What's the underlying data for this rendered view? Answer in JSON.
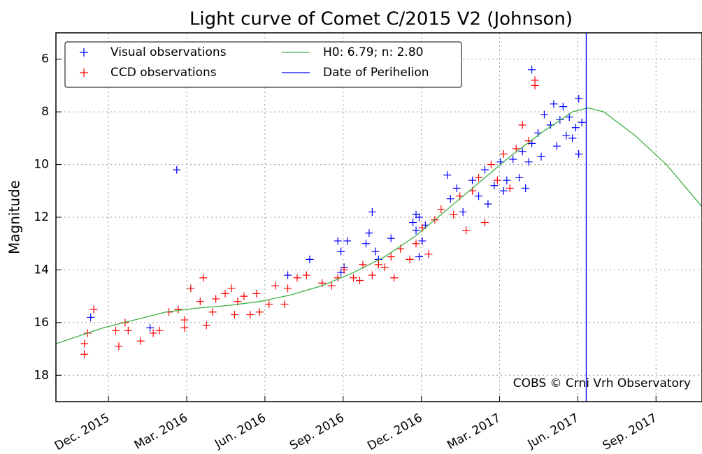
{
  "chart_data": {
    "type": "scatter",
    "title": "Light curve of Comet C/2015 V2 (Johnson)",
    "ylabel": "Magnitude",
    "annotation": "COBS © Crni Vrh Observatory",
    "xlim": [
      2015.749,
      2017.814
    ],
    "ylim": [
      5,
      19
    ],
    "invert_y": true,
    "xticks": [
      {
        "value": 2015.917,
        "label": "Dec. 2015"
      },
      {
        "value": 2016.167,
        "label": "Mar. 2016"
      },
      {
        "value": 2016.417,
        "label": "Jun. 2016"
      },
      {
        "value": 2016.667,
        "label": "Sep. 2016"
      },
      {
        "value": 2016.917,
        "label": "Dec. 2016"
      },
      {
        "value": 2017.167,
        "label": "Mar. 2017"
      },
      {
        "value": 2017.417,
        "label": "Jun. 2017"
      },
      {
        "value": 2017.667,
        "label": "Sep. 2017"
      }
    ],
    "yticks": [
      6,
      8,
      10,
      12,
      14,
      16,
      18
    ],
    "grid": true,
    "legend": "upper left",
    "series": [
      {
        "name": "Visual observations",
        "kind": "scatter",
        "color": "#0000ff",
        "x": [
          2015.86,
          2016.05,
          2016.135,
          2016.49,
          2016.56,
          2016.65,
          2016.66,
          2016.67,
          2016.68,
          2016.66,
          2016.74,
          2016.75,
          2016.76,
          2016.77,
          2016.78,
          2016.82,
          2016.89,
          2016.9,
          2016.91,
          2016.92,
          2016.91,
          2016.93,
          2016.9,
          2017.0,
          2017.01,
          2017.03,
          2017.05,
          2017.08,
          2017.1,
          2017.12,
          2017.13,
          2017.15,
          2017.17,
          2017.18,
          2017.19,
          2017.21,
          2017.23,
          2017.24,
          2017.25,
          2017.26,
          2017.27,
          2017.29,
          2017.3,
          2017.31,
          2017.27,
          2017.33,
          2017.34,
          2017.35,
          2017.36,
          2017.37,
          2017.38,
          2017.39,
          2017.4,
          2017.41,
          2017.42,
          2017.42,
          2017.43
        ],
        "values": [
          15.8,
          16.2,
          10.2,
          14.2,
          13.6,
          12.9,
          13.3,
          13.9,
          12.9,
          14.1,
          13.0,
          12.6,
          11.8,
          13.3,
          13.6,
          12.8,
          12.2,
          12.5,
          12.0,
          12.9,
          13.5,
          12.3,
          11.9,
          10.4,
          11.3,
          10.9,
          11.8,
          10.6,
          11.2,
          10.2,
          11.5,
          10.8,
          9.9,
          11.0,
          10.6,
          9.8,
          10.5,
          9.5,
          10.9,
          9.9,
          9.2,
          8.8,
          9.7,
          8.1,
          6.4,
          8.5,
          7.7,
          9.3,
          8.3,
          7.8,
          8.9,
          8.2,
          9.0,
          8.6,
          7.5,
          9.6,
          8.4
        ]
      },
      {
        "name": "CCD observations",
        "kind": "scatter",
        "color": "#ff0000",
        "x": [
          2015.84,
          2015.84,
          2015.85,
          2015.87,
          2015.94,
          2015.95,
          2015.97,
          2015.98,
          2016.02,
          2016.06,
          2016.08,
          2016.11,
          2016.14,
          2016.16,
          2016.16,
          2016.18,
          2016.21,
          2016.22,
          2016.23,
          2016.25,
          2016.26,
          2016.29,
          2016.31,
          2016.32,
          2016.33,
          2016.35,
          2016.37,
          2016.39,
          2016.4,
          2016.43,
          2016.45,
          2016.48,
          2016.49,
          2016.52,
          2016.55,
          2016.6,
          2016.63,
          2016.65,
          2016.67,
          2016.7,
          2016.72,
          2016.73,
          2016.76,
          2016.78,
          2016.8,
          2016.82,
          2016.83,
          2016.85,
          2016.88,
          2016.9,
          2016.92,
          2016.94,
          2016.96,
          2016.98,
          2017.02,
          2017.04,
          2017.06,
          2017.08,
          2017.1,
          2017.12,
          2017.14,
          2017.16,
          2017.18,
          2017.2,
          2017.22,
          2017.24,
          2017.26,
          2017.28,
          2017.28
        ],
        "values": [
          16.8,
          17.2,
          16.4,
          15.5,
          16.3,
          16.9,
          16.0,
          16.3,
          16.7,
          16.4,
          16.3,
          15.6,
          15.5,
          16.2,
          15.9,
          14.7,
          15.2,
          14.3,
          16.1,
          15.6,
          15.1,
          14.9,
          14.7,
          15.7,
          15.2,
          15.0,
          15.7,
          14.9,
          15.6,
          15.3,
          14.6,
          15.3,
          14.7,
          14.3,
          14.2,
          14.5,
          14.6,
          14.3,
          14.0,
          14.3,
          14.4,
          13.8,
          14.2,
          13.8,
          13.9,
          13.5,
          14.3,
          13.2,
          13.6,
          13.0,
          12.4,
          13.4,
          12.1,
          11.7,
          11.9,
          11.2,
          12.5,
          11.0,
          10.5,
          12.2,
          10.0,
          10.6,
          9.6,
          10.9,
          9.4,
          8.5,
          9.1,
          6.8,
          7.0
        ]
      },
      {
        "name": "H0: 6.79; n: 2.80",
        "kind": "line",
        "color": "#3cb043",
        "x": [
          2015.749,
          2015.9,
          2016.0,
          2016.1,
          2016.2,
          2016.3,
          2016.4,
          2016.5,
          2016.6,
          2016.7,
          2016.8,
          2016.9,
          2017.0,
          2017.1,
          2017.2,
          2017.3,
          2017.4,
          2017.45,
          2017.5,
          2017.6,
          2017.7,
          2017.814
        ],
        "values": [
          16.8,
          16.2,
          15.9,
          15.6,
          15.45,
          15.35,
          15.2,
          14.95,
          14.6,
          14.1,
          13.5,
          12.7,
          11.7,
          10.7,
          9.7,
          8.8,
          8.0,
          7.85,
          8.0,
          8.9,
          10.0,
          11.6
        ]
      },
      {
        "name": "Date of Perihelion",
        "kind": "vline",
        "color": "#0000ff",
        "x": 2017.444
      }
    ]
  }
}
